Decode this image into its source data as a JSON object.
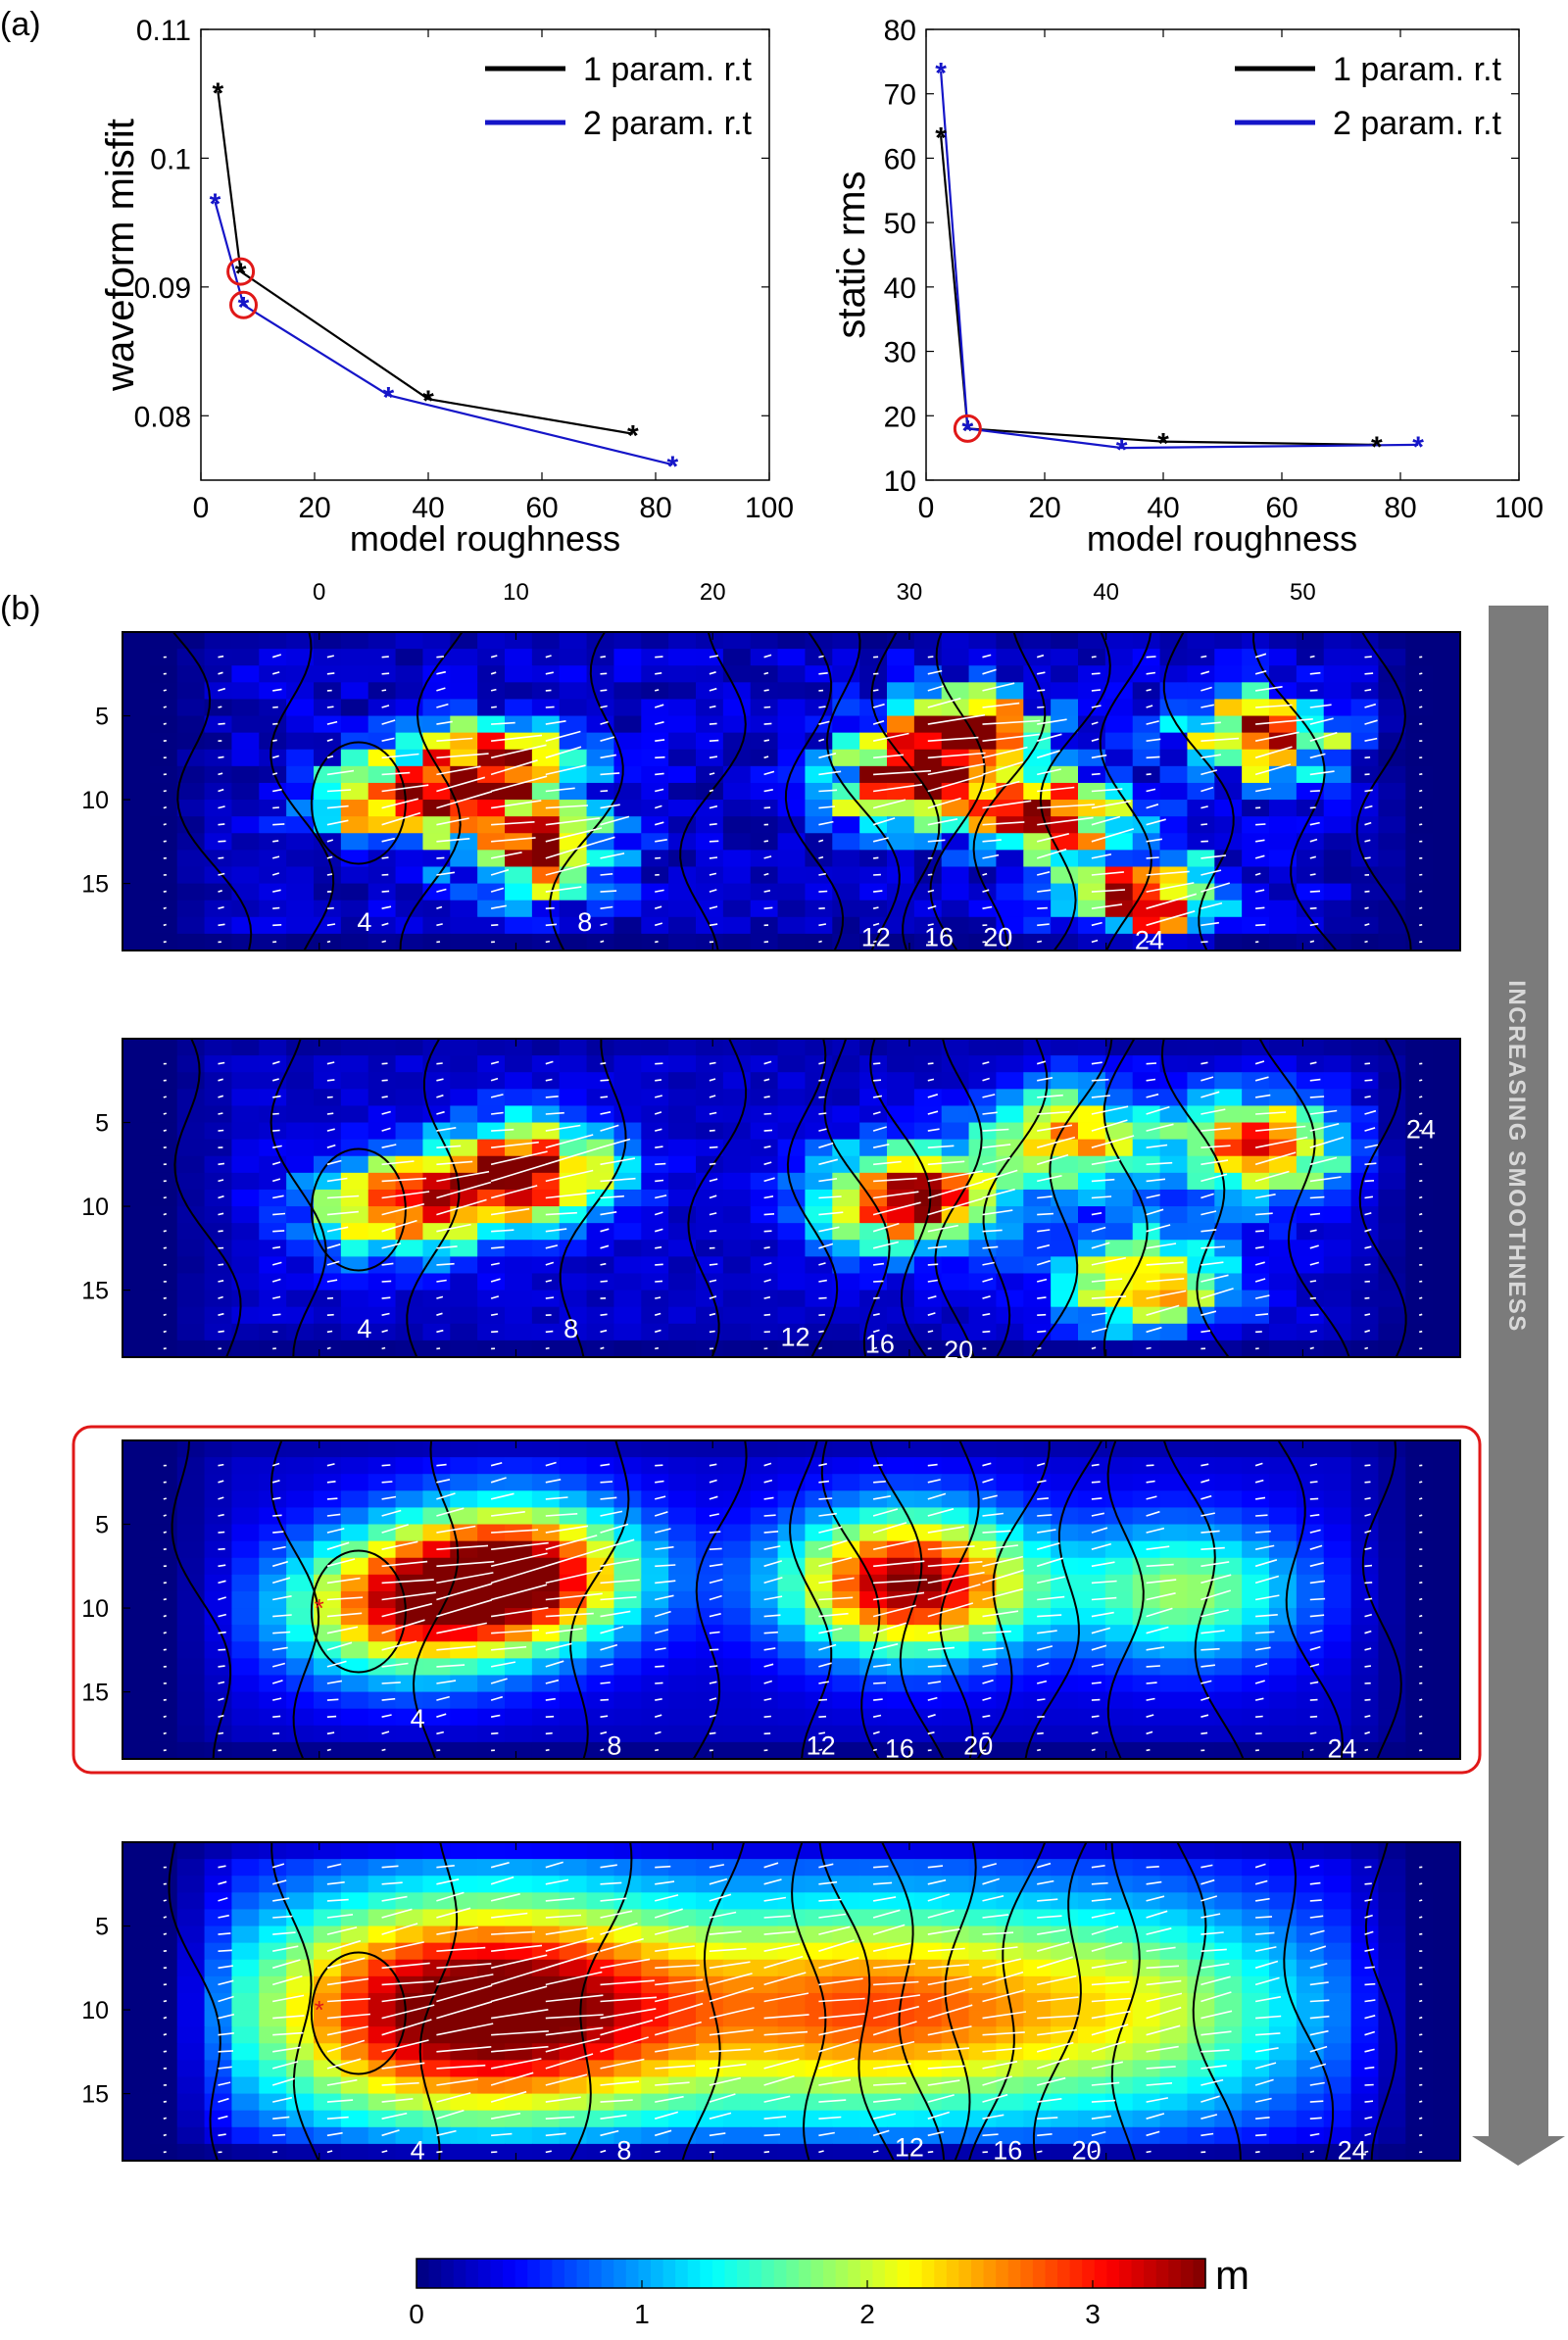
{
  "panel_labels": {
    "a": "(a)",
    "b": "(b)"
  },
  "smoothness_label": "INCREASING SMOOTHNESS",
  "colorbar": {
    "unit": "m",
    "ticks": [
      "0",
      "1",
      "2",
      "3"
    ],
    "range": [
      0,
      3.5
    ]
  },
  "colors": {
    "series1": "#000000",
    "series2": "#1515c8",
    "highlight": "#e01818",
    "arrow_bar": "#7b7b7b"
  },
  "chart_data": [
    {
      "type": "line",
      "xlabel": "model roughness",
      "ylabel": "waveform misfit",
      "xlim": [
        0,
        100
      ],
      "ylim": [
        0.075,
        0.11
      ],
      "xticks": [
        0,
        20,
        40,
        60,
        80,
        100
      ],
      "yticks": [
        0.08,
        0.09,
        0.1,
        0.11
      ],
      "ytick_labels": [
        "0.08",
        "0.09",
        "0.1",
        "0.11"
      ],
      "legend": "top-right",
      "series": [
        {
          "name": "1 param. r.t",
          "x": [
            3,
            7,
            40,
            76
          ],
          "y": [
            0.1052,
            0.0912,
            0.0813,
            0.0786
          ]
        },
        {
          "name": "2 param. r.t",
          "x": [
            2.5,
            7.5,
            33,
            83
          ],
          "y": [
            0.0966,
            0.0886,
            0.0816,
            0.0762
          ]
        }
      ],
      "highlighted": [
        {
          "x": 7,
          "y": 0.0912
        },
        {
          "x": 7.5,
          "y": 0.0886
        }
      ]
    },
    {
      "type": "line",
      "xlabel": "model roughness",
      "ylabel": "static rms",
      "xlim": [
        0,
        100
      ],
      "ylim": [
        10,
        80
      ],
      "xticks": [
        0,
        20,
        40,
        60,
        80,
        100
      ],
      "yticks": [
        10,
        20,
        30,
        40,
        50,
        60,
        70,
        80
      ],
      "ytick_labels": [
        "10",
        "20",
        "30",
        "40",
        "50",
        "60",
        "70",
        "80"
      ],
      "legend": "top-right",
      "series": [
        {
          "name": "1 param. r.t",
          "x": [
            2.5,
            7,
            40,
            76
          ],
          "y": [
            63.5,
            18,
            16,
            15.5
          ]
        },
        {
          "name": "2 param. r.t",
          "x": [
            2.5,
            7,
            33,
            83
          ],
          "y": [
            73.5,
            18,
            15,
            15.5
          ]
        }
      ],
      "highlighted": [
        {
          "x": 7,
          "y": 18
        }
      ]
    },
    {
      "type": "heatmap",
      "description_free": true,
      "x_ticks": [
        "0",
        "10",
        "20",
        "30",
        "40",
        "50"
      ],
      "x_tick_values": [
        0,
        10,
        20,
        30,
        40,
        50
      ],
      "xlim": [
        -10,
        58
      ],
      "ylim": [
        0,
        19
      ],
      "y_ticks": [
        "5",
        "10",
        "15"
      ],
      "y_tick_values": [
        5,
        10,
        15
      ],
      "colorscale": "jet",
      "value_range": [
        0,
        3.5
      ],
      "panels": [
        {
          "contour_labels": [
            {
              "text": "4",
              "x": 2.3,
              "y": 17.3
            },
            {
              "text": "8",
              "x": 13.5,
              "y": 17.3
            },
            {
              "text": "12",
              "x": 28.3,
              "y": 18.2
            },
            {
              "text": "16",
              "x": 31.5,
              "y": 18.2
            },
            {
              "text": "20",
              "x": 34.5,
              "y": 18.2
            },
            {
              "text": "24",
              "x": 42.2,
              "y": 18.4
            }
          ],
          "peaks": [
            {
              "x": 9,
              "y": 8,
              "v": 3.1
            },
            {
              "x": 11,
              "y": 13,
              "v": 3.2
            },
            {
              "x": 4,
              "y": 10,
              "v": 3.0
            },
            {
              "x": 30,
              "y": 9,
              "v": 3.4
            },
            {
              "x": 33,
              "y": 6,
              "v": 3.2
            },
            {
              "x": 42,
              "y": 16,
              "v": 3.3
            },
            {
              "x": 48,
              "y": 6,
              "v": 3.0
            },
            {
              "x": 37,
              "y": 11,
              "v": 2.9
            }
          ],
          "noise": 0.9,
          "spread": 3.2,
          "highlighted": false,
          "hypocenter": false
        },
        {
          "contour_labels": [
            {
              "text": "4",
              "x": 2.3,
              "y": 17.3
            },
            {
              "text": "8",
              "x": 12.8,
              "y": 17.3
            },
            {
              "text": "12",
              "x": 24.2,
              "y": 17.8
            },
            {
              "text": "16",
              "x": 28.5,
              "y": 18.2
            },
            {
              "text": "20",
              "x": 32.5,
              "y": 18.6
            },
            {
              "text": "24",
              "x": 56,
              "y": 5.4
            }
          ],
          "peaks": [
            {
              "x": 10.5,
              "y": 8,
              "v": 3.3
            },
            {
              "x": 4,
              "y": 10,
              "v": 2.7
            },
            {
              "x": 30,
              "y": 9.5,
              "v": 3.4
            },
            {
              "x": 42,
              "y": 14.5,
              "v": 2.4
            },
            {
              "x": 48,
              "y": 6.5,
              "v": 2.7
            },
            {
              "x": 38,
              "y": 6,
              "v": 2.2
            }
          ],
          "noise": 0.45,
          "spread": 3.8,
          "highlighted": false,
          "hypocenter": false
        },
        {
          "contour_labels": [
            {
              "text": "4",
              "x": 5,
              "y": 16.6
            },
            {
              "text": "8",
              "x": 15,
              "y": 18.2
            },
            {
              "text": "12",
              "x": 25.5,
              "y": 18.2
            },
            {
              "text": "16",
              "x": 29.5,
              "y": 18.4
            },
            {
              "text": "20",
              "x": 33.5,
              "y": 18.2
            },
            {
              "text": "24",
              "x": 52,
              "y": 18.4
            }
          ],
          "peaks": [
            {
              "x": 10,
              "y": 8,
              "v": 3.3
            },
            {
              "x": 30,
              "y": 8.5,
              "v": 3.3
            },
            {
              "x": 4,
              "y": 10,
              "v": 2.3
            },
            {
              "x": 44,
              "y": 9,
              "v": 1.6
            }
          ],
          "noise": 0.0,
          "spread": 5.5,
          "highlighted": true,
          "hypocenter": true
        },
        {
          "contour_labels": [
            {
              "text": "4",
              "x": 5,
              "y": 18.4
            },
            {
              "text": "8",
              "x": 15.5,
              "y": 18.4
            },
            {
              "text": "12",
              "x": 30,
              "y": 18.2
            },
            {
              "text": "16",
              "x": 35,
              "y": 18.4
            },
            {
              "text": "20",
              "x": 39,
              "y": 18.4
            },
            {
              "text": "24",
              "x": 52.5,
              "y": 18.4
            }
          ],
          "peaks": [
            {
              "x": 12,
              "y": 10,
              "v": 2.3
            },
            {
              "x": 28,
              "y": 10,
              "v": 2.2
            },
            {
              "x": 42,
              "y": 10,
              "v": 1.6
            },
            {
              "x": 4,
              "y": 10,
              "v": 2.0
            }
          ],
          "noise": 0.0,
          "spread": 9.0,
          "highlighted": false,
          "hypocenter": true
        }
      ]
    }
  ]
}
